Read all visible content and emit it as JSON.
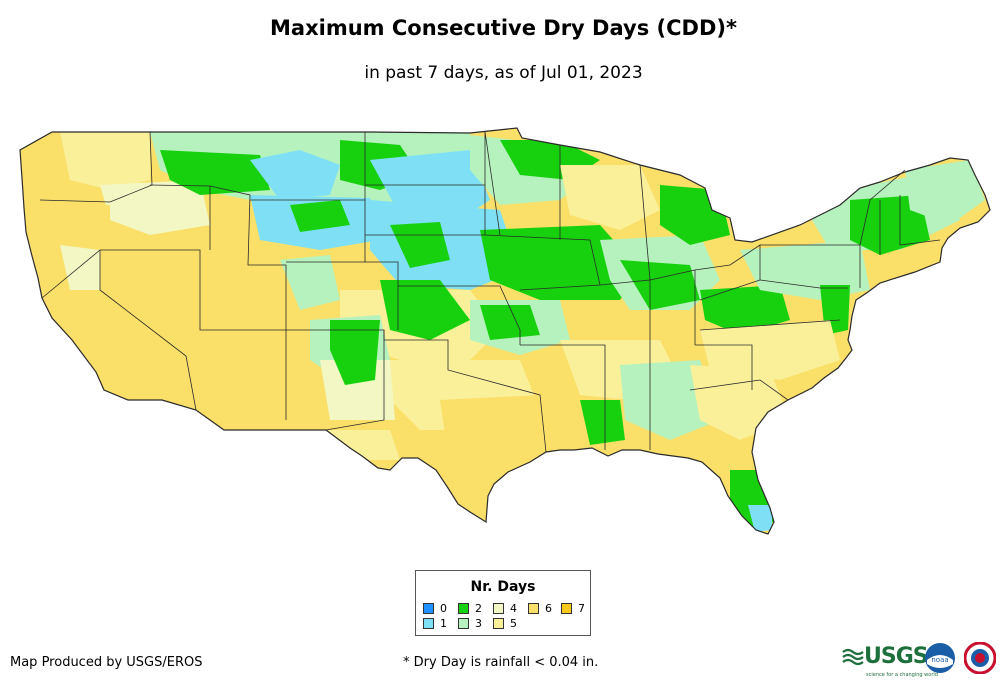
{
  "header": {
    "title": "Maximum Consecutive Dry Days (CDD)*",
    "subtitle": "in past 7 days, as of Jul 01, 2023"
  },
  "legend": {
    "title": "Nr. Days",
    "items": [
      {
        "label": "0",
        "color": "#1e90ff"
      },
      {
        "label": "1",
        "color": "#7fe0f5"
      },
      {
        "label": "2",
        "color": "#17d10f"
      },
      {
        "label": "3",
        "color": "#b6f2bd"
      },
      {
        "label": "4",
        "color": "#f2f7c4"
      },
      {
        "label": "5",
        "color": "#faf09a"
      },
      {
        "label": "6",
        "color": "#fadf69"
      },
      {
        "label": "7",
        "color": "#f7c91d"
      }
    ]
  },
  "footer": {
    "producer": "Map Produced by USGS/EROS",
    "note": "* Dry Day is rainfall < 0.04 in."
  },
  "logos": {
    "usgs": "USGS",
    "usgs_tagline": "science for a changing world",
    "noaa": "noaa"
  },
  "colors": {
    "state_border": "#2a2a2a",
    "background": "#ffffff"
  }
}
